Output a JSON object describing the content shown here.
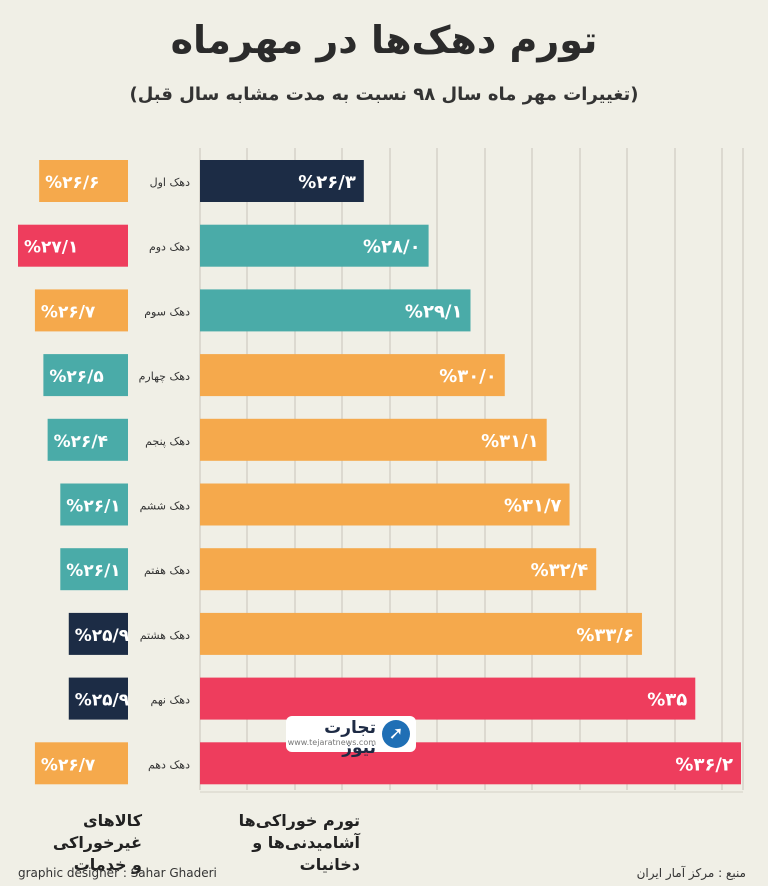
{
  "title": "تورم دهک‌ها در مهرماه",
  "subtitle": "(تغییرات مهر ماه سال ۹۸ نسبت به مدت مشابه سال قبل)",
  "legend": {
    "left_line1": "کالاهای غیرخوراکی",
    "left_line2": "و خدمات",
    "right_line1": "تورم خوراکی‌ها",
    "right_line2": "آشامیدنی‌ها و دخانیات"
  },
  "credit_left": "graphic designer : Sahar Ghaderi",
  "credit_right": "منبع : مرکز آمار ایران",
  "logo": {
    "name": "تجارت نیوز",
    "url": "www.tejaratnews.com"
  },
  "colors": {
    "orange": "#f5a94c",
    "teal": "#4aaba8",
    "navy": "#1c2c45",
    "red": "#ee3d5d",
    "grid": "#d3d0c6"
  },
  "chart_data": {
    "type": "bar",
    "categories": [
      "دهک اول",
      "دهک دوم",
      "دهک سوم",
      "دهک چهارم",
      "دهک پنجم",
      "دهک ششم",
      "دهک هفتم",
      "دهک هشتم",
      "دهک نهم",
      "دهک دهم"
    ],
    "series": [
      {
        "name": "تورم خوراکی‌ها آشامیدنی‌ها و دخانیات",
        "values": [
          26.3,
          28.0,
          29.1,
          30.0,
          31.1,
          31.7,
          32.4,
          33.6,
          35.0,
          36.2
        ],
        "labels": [
          "%۲۶/۳",
          "%۲۸/۰",
          "%۲۹/۱",
          "%۳۰/۰",
          "%۳۱/۱",
          "%۳۱/۷",
          "%۳۲/۴",
          "%۳۳/۶",
          "%۳۵",
          "%۳۶/۲"
        ],
        "colors": [
          "navy",
          "teal",
          "teal",
          "orange",
          "orange",
          "orange",
          "orange",
          "orange",
          "red",
          "red"
        ]
      },
      {
        "name": "کالاهای غیرخوراکی و خدمات",
        "values": [
          26.6,
          27.1,
          26.7,
          26.5,
          26.4,
          26.1,
          26.1,
          25.9,
          25.9,
          26.7
        ],
        "labels": [
          "%۲۶/۶",
          "%۲۷/۱",
          "%۲۶/۷",
          "%۲۶/۵",
          "%۲۶/۴",
          "%۲۶/۱",
          "%۲۶/۱",
          "%۲۵/۹",
          "%۲۵/۹",
          "%۲۶/۷"
        ],
        "colors": [
          "orange",
          "red",
          "orange",
          "teal",
          "teal",
          "teal",
          "teal",
          "navy",
          "navy",
          "orange"
        ]
      }
    ],
    "grid": true
  }
}
